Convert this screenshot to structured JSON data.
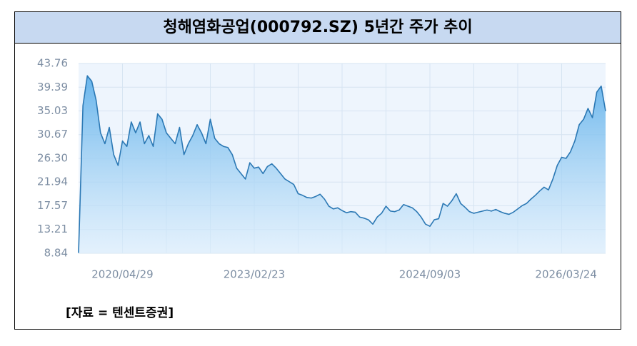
{
  "chart_data": {
    "type": "line",
    "title": "청해염화공업(000792.SZ) 5년간 주가 추이",
    "source": "[자료 = 텐센트증권]",
    "categories": [
      null,
      null,
      null,
      null,
      null,
      null,
      null,
      null,
      null,
      null,
      "2020/04/29",
      null,
      null,
      null,
      null,
      null,
      null,
      null,
      null,
      null,
      null,
      null,
      null,
      null,
      null,
      null,
      null,
      null,
      null,
      null,
      null,
      null,
      null,
      null,
      null,
      null,
      null,
      null,
      null,
      null,
      "2023/02/23",
      null,
      null,
      null,
      null,
      null,
      null,
      null,
      null,
      null,
      null,
      null,
      null,
      null,
      null,
      null,
      null,
      null,
      null,
      null,
      null,
      null,
      null,
      null,
      null,
      null,
      null,
      null,
      null,
      null,
      null,
      null,
      null,
      null,
      null,
      null,
      null,
      null,
      null,
      null,
      "2024/09/03",
      null,
      null,
      null,
      null,
      null,
      null,
      null,
      null,
      null,
      null,
      null,
      null,
      null,
      null,
      null,
      null,
      null,
      null,
      null,
      null,
      null,
      null,
      null,
      null,
      null,
      null,
      null,
      null,
      null,
      null,
      "2026/03/24",
      null,
      null,
      null,
      null,
      null,
      null,
      null,
      null,
      null
    ],
    "values": [
      8.9,
      36,
      41.5,
      40.5,
      37,
      31,
      29,
      32,
      27,
      25,
      29.5,
      28.5,
      33,
      31,
      33,
      29,
      30.5,
      28.5,
      34.5,
      33.5,
      31,
      30,
      29,
      32,
      27,
      29,
      30.5,
      32.5,
      31,
      29,
      33.5,
      30,
      29,
      28.5,
      28.3,
      27,
      24.5,
      23.5,
      22.5,
      25.5,
      24.5,
      24.7,
      23.5,
      24.8,
      25.3,
      24.5,
      23.5,
      22.5,
      22,
      21.5,
      19.8,
      19.5,
      19.1,
      19,
      19.3,
      19.7,
      18.8,
      17.5,
      17,
      17.2,
      16.7,
      16.3,
      16.5,
      16.4,
      15.5,
      15.3,
      15,
      14.2,
      15.5,
      16.2,
      17.5,
      16.6,
      16.5,
      16.8,
      17.8,
      17.5,
      17.2,
      16.5,
      15.5,
      14.2,
      13.8,
      15,
      15.2,
      18,
      17.5,
      18.5,
      19.8,
      18,
      17.3,
      16.5,
      16.2,
      16.4,
      16.6,
      16.8,
      16.6,
      16.9,
      16.5,
      16.2,
      16,
      16.4,
      17,
      17.6,
      18,
      18.8,
      19.5,
      20.3,
      21,
      20.5,
      22.5,
      25,
      26.5,
      26.3,
      27.5,
      29.5,
      32.5,
      33.5,
      35.5,
      33.8,
      38.5,
      39.6,
      35
    ],
    "color": "#2b78b4",
    "ylim": [
      8.84,
      43.76
    ],
    "yticks": [
      8.84,
      13.21,
      17.57,
      21.94,
      {
        "value": 26.3,
        "label": "26.30"
      },
      30.67,
      35.03,
      39.39,
      43.76
    ],
    "grid": true
  }
}
